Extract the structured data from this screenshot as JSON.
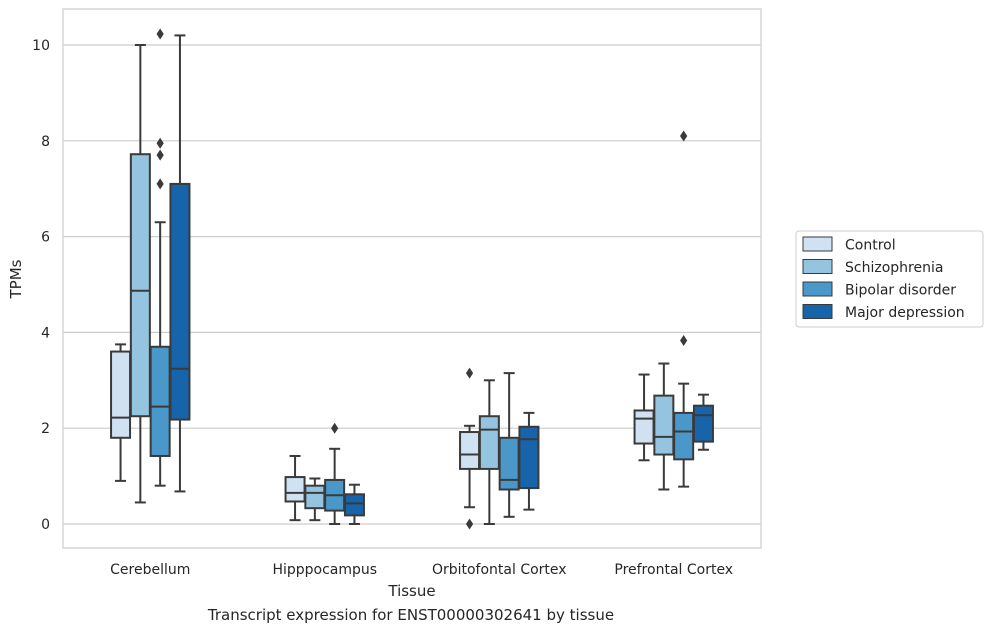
{
  "caption": "Transcript expression for ENST00000302641 by tissue",
  "chart_data": {
    "type": "boxplot",
    "xlabel": "Tissue",
    "ylabel": "TPMs",
    "ylim": [
      -0.5,
      10.75
    ],
    "yticks": [
      0,
      2,
      4,
      6,
      8,
      10
    ],
    "grid": "horizontal",
    "legend_position": "right",
    "categories": [
      "Cerebellum",
      "Hipppocampus",
      "Orbitofontal Cortex",
      "Prefrontal Cortex"
    ],
    "series": [
      {
        "name": "Control",
        "color": "#d0e1f2",
        "boxes": [
          {
            "whislo": 0.9,
            "q1": 1.8,
            "med": 2.22,
            "q3": 3.6,
            "whishi": 3.75,
            "fliers": []
          },
          {
            "whislo": 0.08,
            "q1": 0.47,
            "med": 0.65,
            "q3": 0.98,
            "whishi": 1.42,
            "fliers": []
          },
          {
            "whislo": 0.35,
            "q1": 1.15,
            "med": 1.45,
            "q3": 1.92,
            "whishi": 2.05,
            "fliers": [
              3.15,
              0.0
            ]
          },
          {
            "whislo": 1.33,
            "q1": 1.68,
            "med": 2.2,
            "q3": 2.37,
            "whishi": 3.12,
            "fliers": []
          }
        ]
      },
      {
        "name": "Schizophrenia",
        "color": "#94c4df",
        "boxes": [
          {
            "whislo": 0.45,
            "q1": 2.25,
            "med": 4.87,
            "q3": 7.72,
            "whishi": 10.0,
            "fliers": []
          },
          {
            "whislo": 0.08,
            "q1": 0.33,
            "med": 0.65,
            "q3": 0.8,
            "whishi": 0.95,
            "fliers": []
          },
          {
            "whislo": 0.0,
            "q1": 1.15,
            "med": 1.97,
            "q3": 2.25,
            "whishi": 3.0,
            "fliers": []
          },
          {
            "whislo": 0.72,
            "q1": 1.45,
            "med": 1.82,
            "q3": 2.68,
            "whishi": 3.35,
            "fliers": []
          }
        ]
      },
      {
        "name": "Bipolar disorder",
        "color": "#4a98c9",
        "boxes": [
          {
            "whislo": 0.8,
            "q1": 1.42,
            "med": 2.45,
            "q3": 3.7,
            "whishi": 6.3,
            "fliers": [
              7.7,
              10.23,
              7.95,
              7.1
            ]
          },
          {
            "whislo": 0.0,
            "q1": 0.28,
            "med": 0.6,
            "q3": 0.92,
            "whishi": 1.57,
            "fliers": [
              2.0
            ]
          },
          {
            "whislo": 0.15,
            "q1": 0.72,
            "med": 0.92,
            "q3": 1.8,
            "whishi": 3.15,
            "fliers": []
          },
          {
            "whislo": 0.78,
            "q1": 1.35,
            "med": 1.93,
            "q3": 2.32,
            "whishi": 2.93,
            "fliers": [
              8.1,
              3.83
            ]
          }
        ]
      },
      {
        "name": "Major depression",
        "color": "#1764ab",
        "boxes": [
          {
            "whislo": 0.68,
            "q1": 2.18,
            "med": 3.24,
            "q3": 7.1,
            "whishi": 10.2,
            "fliers": []
          },
          {
            "whislo": 0.0,
            "q1": 0.18,
            "med": 0.43,
            "q3": 0.62,
            "whishi": 0.82,
            "fliers": []
          },
          {
            "whislo": 0.3,
            "q1": 0.75,
            "med": 1.77,
            "q3": 2.03,
            "whishi": 2.32,
            "fliers": []
          },
          {
            "whislo": 1.55,
            "q1": 1.72,
            "med": 2.27,
            "q3": 2.47,
            "whishi": 2.7,
            "fliers": []
          }
        ]
      }
    ]
  }
}
